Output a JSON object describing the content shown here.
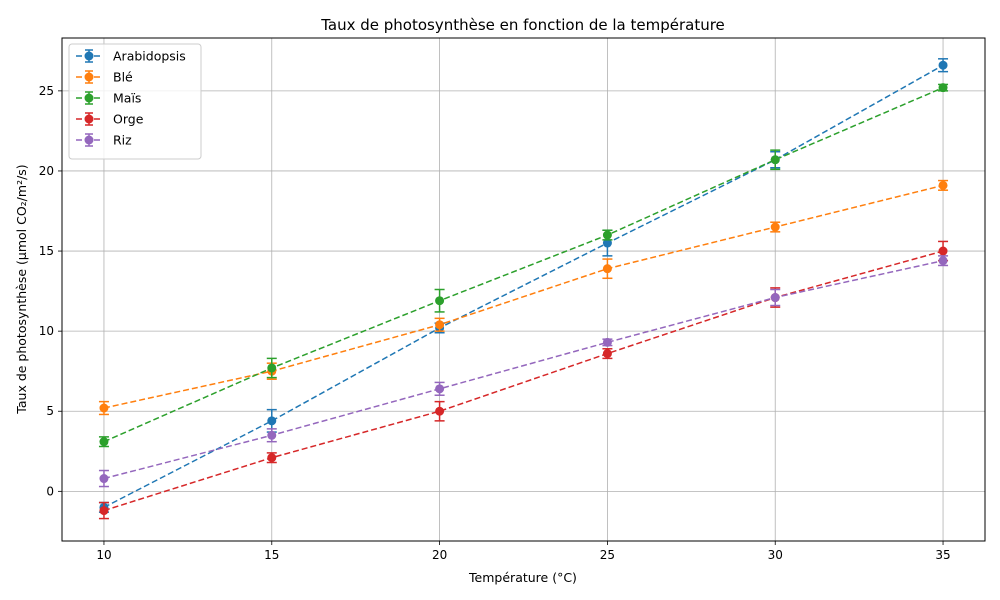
{
  "chart_data": {
    "type": "line",
    "title": "Taux de photosynthèse en fonction de la température",
    "xlabel": "Température (°C)",
    "ylabel": "Taux de photosynthèse (µmol CO₂/m²/s)",
    "x": [
      10,
      15,
      20,
      25,
      30,
      35
    ],
    "xlim": [
      8.75,
      36.25
    ],
    "ylim": [
      -3.1,
      28.3
    ],
    "xticks": [
      10,
      15,
      20,
      25,
      30,
      35
    ],
    "yticks": [
      0,
      5,
      10,
      15,
      20,
      25
    ],
    "grid": true,
    "legend_position": "top-left",
    "series": [
      {
        "name": "Arabidopsis",
        "color": "#1f77b4",
        "values": [
          -1.0,
          4.4,
          10.2,
          15.5,
          20.7,
          26.6
        ],
        "errors": [
          0.3,
          0.7,
          0.3,
          0.8,
          0.5,
          0.4
        ]
      },
      {
        "name": "Blé",
        "color": "#ff7f0e",
        "values": [
          5.2,
          7.5,
          10.4,
          13.9,
          16.5,
          19.1
        ],
        "errors": [
          0.4,
          0.5,
          0.4,
          0.6,
          0.3,
          0.3
        ]
      },
      {
        "name": "Maïs",
        "color": "#2ca02c",
        "values": [
          3.1,
          7.7,
          11.9,
          16.0,
          20.7,
          25.2
        ],
        "errors": [
          0.3,
          0.6,
          0.7,
          0.3,
          0.6,
          0.2
        ]
      },
      {
        "name": "Orge",
        "color": "#d62728",
        "values": [
          -1.2,
          2.1,
          5.0,
          8.6,
          12.1,
          15.0
        ],
        "errors": [
          0.5,
          0.3,
          0.6,
          0.3,
          0.6,
          0.6
        ]
      },
      {
        "name": "Riz",
        "color": "#9467bd",
        "values": [
          0.8,
          3.5,
          6.4,
          9.3,
          12.1,
          14.4
        ],
        "errors": [
          0.5,
          0.4,
          0.4,
          0.2,
          0.5,
          0.3
        ]
      }
    ]
  }
}
